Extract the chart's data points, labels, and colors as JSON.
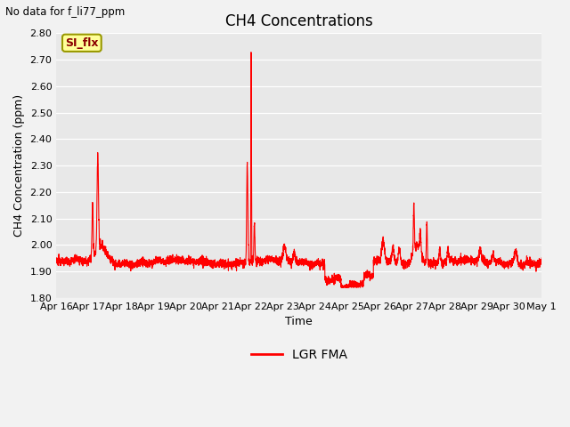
{
  "title": "CH4 Concentrations",
  "xlabel": "Time",
  "ylabel": "CH4 Concentration (ppm)",
  "upper_left_text": "No data for f_li77_ppm",
  "legend_label": "LGR FMA",
  "line_color": "#ff0000",
  "ylim": [
    1.8,
    2.8
  ],
  "yticks": [
    1.8,
    1.9,
    2.0,
    2.1,
    2.2,
    2.3,
    2.4,
    2.5,
    2.6,
    2.7,
    2.8
  ],
  "xtick_labels": [
    "Apr 16",
    "Apr 17",
    "Apr 18",
    "Apr 19",
    "Apr 20",
    "Apr 21",
    "Apr 22",
    "Apr 23",
    "Apr 24",
    "Apr 25",
    "Apr 26",
    "Apr 27",
    "Apr 28",
    "Apr 29",
    "Apr 30",
    "May 1"
  ],
  "plot_bg_color": "#e8e8e8",
  "fig_bg_color": "#f2f2f2",
  "grid_color": "#ffffff",
  "si_flx_label": "SI_flx",
  "si_flx_bg": "#ffff99",
  "si_flx_border": "#999900",
  "si_flx_text_color": "#8b0000",
  "title_fontsize": 12,
  "axis_label_fontsize": 9,
  "tick_fontsize": 8,
  "legend_fontsize": 10
}
